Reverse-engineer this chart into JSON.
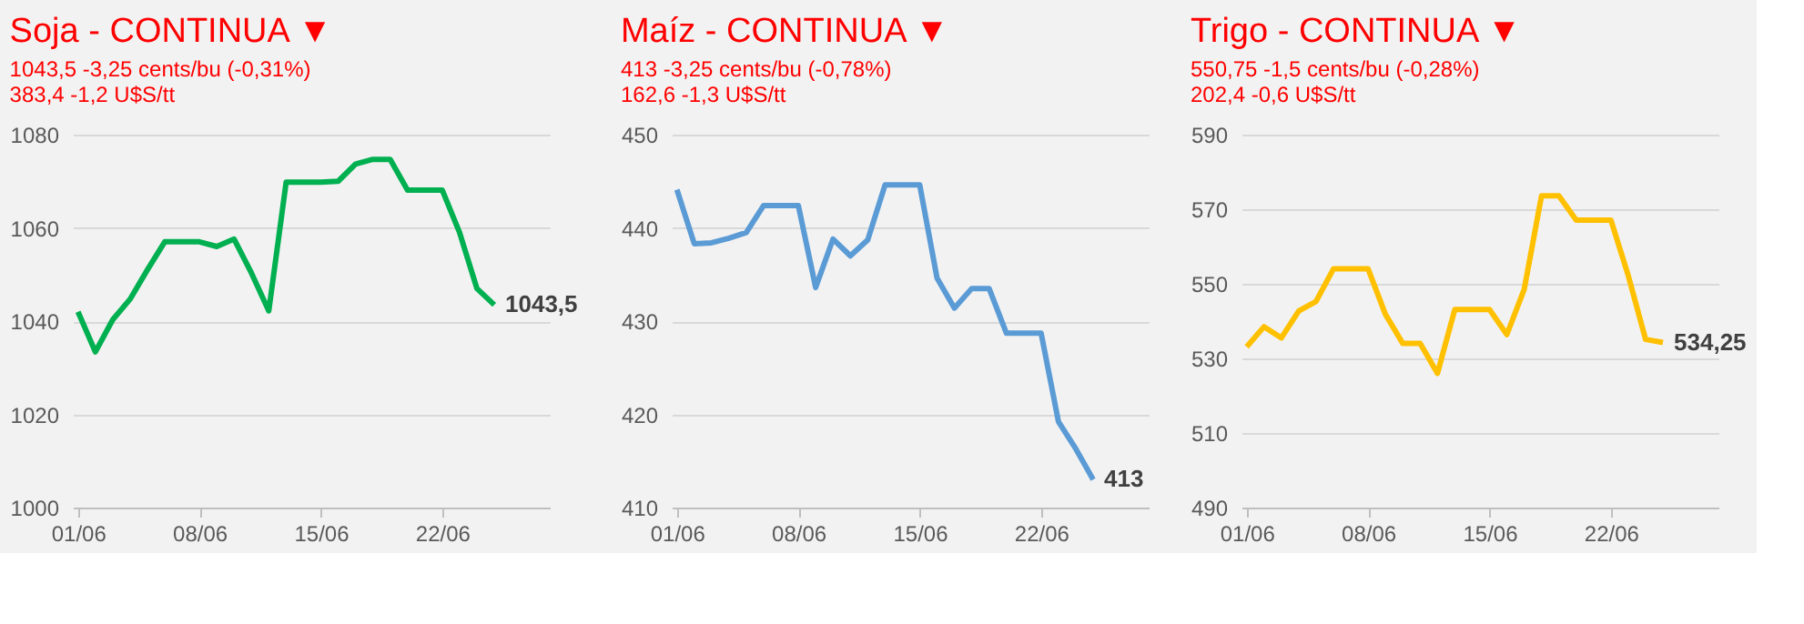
{
  "chart_data": [
    {
      "type": "line",
      "title": "Soja - CONTINUA ▼",
      "annotations": [
        "1043,5 -3,25 cents/bu (-0,31%)",
        "383,4 -1,2 U$S/tt"
      ],
      "categories": [
        "01/06",
        null,
        null,
        null,
        null,
        null,
        null,
        "08/06",
        null,
        null,
        null,
        null,
        null,
        null,
        "15/06",
        null,
        null,
        null,
        null,
        null,
        null,
        "22/06",
        null,
        null,
        null
      ],
      "series": [
        {
          "color": "#00b050",
          "values": [
            1042,
            1033.4,
            1040.3,
            1044.7,
            1051,
            1057,
            1057,
            1057,
            1056,
            1057.6,
            1050.3,
            1042.2,
            1069.8,
            1069.8,
            1069.8,
            1070,
            1073.7,
            1074.7,
            1074.7,
            1068.1,
            1068.1,
            1068.1,
            1059,
            1047,
            1043.5
          ],
          "value_labels": [
            null,
            null,
            null,
            null,
            null,
            null,
            null,
            null,
            null,
            null,
            null,
            null,
            null,
            null,
            null,
            null,
            null,
            null,
            null,
            null,
            null,
            null,
            null,
            null,
            "1043,5"
          ]
        }
      ],
      "ylim": [
        1000,
        1080
      ],
      "yticks": [
        1000,
        1020,
        1040,
        1060,
        1080
      ],
      "grid": "y",
      "legend": false
    },
    {
      "type": "line",
      "title": "Maíz - CONTINUA ▼",
      "annotations": [
        "413 -3,25 cents/bu (-0,78%)",
        "162,6 -1,3 U$S/tt"
      ],
      "categories": [
        "01/06",
        null,
        null,
        null,
        null,
        null,
        null,
        "08/06",
        null,
        null,
        null,
        null,
        null,
        null,
        "15/06",
        null,
        null,
        null,
        null,
        null,
        null,
        "22/06",
        null,
        null,
        null
      ],
      "series": [
        {
          "color": "#5b9bd5",
          "values": [
            444.1,
            438.3,
            438.4,
            438.9,
            439.5,
            442.4,
            442.4,
            442.4,
            433.6,
            438.8,
            437,
            438.7,
            444.6,
            444.6,
            444.6,
            434.6,
            431.4,
            433.5,
            433.5,
            428.7,
            428.7,
            428.7,
            419.2,
            416.3,
            413
          ],
          "value_labels": [
            null,
            null,
            null,
            null,
            null,
            null,
            null,
            null,
            null,
            null,
            null,
            null,
            null,
            null,
            null,
            null,
            null,
            null,
            null,
            null,
            null,
            null,
            null,
            null,
            "413"
          ]
        }
      ],
      "ylim": [
        410,
        450
      ],
      "yticks": [
        410,
        420,
        430,
        440,
        450
      ],
      "grid": "y",
      "legend": false
    },
    {
      "type": "line",
      "title": "Trigo - CONTINUA ▼",
      "annotations": [
        "550,75 -1,5 cents/bu (-0,28%)",
        "202,4 -0,6 U$S/tt"
      ],
      "categories": [
        "01/06",
        null,
        null,
        null,
        null,
        null,
        null,
        "08/06",
        null,
        null,
        null,
        null,
        null,
        null,
        "15/06",
        null,
        null,
        null,
        null,
        null,
        null,
        "22/06",
        null,
        null,
        null
      ],
      "series": [
        {
          "color": "#ffc000",
          "values": [
            533.1,
            538.5,
            535.5,
            542.7,
            545.3,
            554,
            554,
            554,
            541.8,
            534,
            534,
            526,
            543.1,
            543.1,
            543.1,
            536.4,
            548.5,
            573.6,
            573.6,
            567.1,
            567.1,
            567.1,
            552.2,
            535.1,
            534.25
          ],
          "value_labels": [
            null,
            null,
            null,
            null,
            null,
            null,
            null,
            null,
            null,
            null,
            null,
            null,
            null,
            null,
            null,
            null,
            null,
            null,
            null,
            null,
            null,
            null,
            null,
            null,
            "534,25"
          ]
        }
      ],
      "ylim": [
        490,
        590
      ],
      "yticks": [
        490,
        510,
        530,
        550,
        570,
        590
      ],
      "grid": "y",
      "legend": false
    }
  ]
}
